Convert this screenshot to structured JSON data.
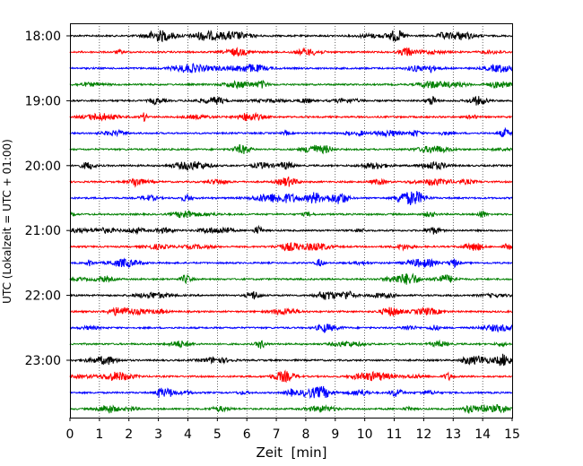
{
  "chart_data": {
    "type": "line",
    "title": "",
    "xlabel": "Zeit  [min]",
    "ylabel": "UTC (Lokalzeit = UTC + 01:00)",
    "xlim": [
      0,
      15
    ],
    "x_ticks": [
      0,
      1,
      2,
      3,
      4,
      5,
      6,
      7,
      8,
      9,
      10,
      11,
      12,
      13,
      14,
      15
    ],
    "y_tick_labels": [
      "18:00",
      "19:00",
      "20:00",
      "21:00",
      "22:00",
      "23:00"
    ],
    "trace_interval_min": 15,
    "first_trace": "18:00",
    "trace_count": 24,
    "trace_colors": [
      "#000000",
      "#ff0000",
      "#0000ff",
      "#008000"
    ],
    "grid": "vertical dotted lines at each minute",
    "legend": "none"
  }
}
